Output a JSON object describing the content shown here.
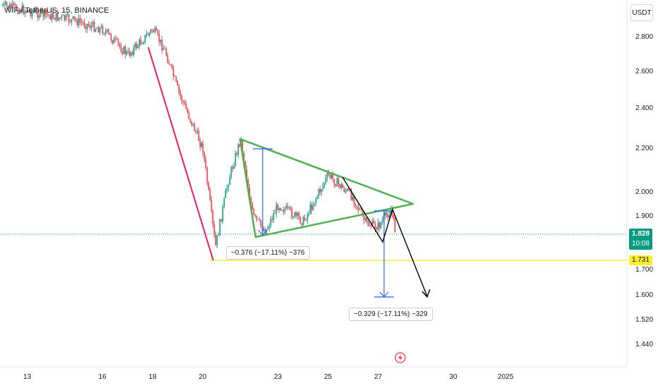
{
  "header": {
    "title": "WIF / TetherUS, 15, BINANCE",
    "currency": "USDT"
  },
  "chart_data": {
    "type": "candlestick",
    "symbol": "WIF / TetherUS",
    "interval": "15",
    "exchange": "BINANCE",
    "y_ticks": [
      "2.800",
      "2.600",
      "2.400",
      "2.200",
      "2.000",
      "1.900",
      "1.700",
      "1.600",
      "1.520",
      "1.440"
    ],
    "y_tick_values": [
      2.8,
      2.6,
      2.4,
      2.2,
      2.0,
      1.9,
      1.7,
      1.6,
      1.52,
      1.44
    ],
    "x_ticks": [
      "13",
      "16",
      "18",
      "20",
      "23",
      "25",
      "27",
      "30",
      "2025"
    ],
    "current_price": "1.828",
    "countdown": "10:08",
    "support_level": "1.731",
    "price_path": [
      {
        "date": "Dec 12",
        "price": 3.0
      },
      {
        "date": "Dec 15",
        "price": 2.9
      },
      {
        "date": "Dec 16",
        "price": 2.85
      },
      {
        "date": "Dec 17",
        "price": 2.7
      },
      {
        "date": "Dec 18",
        "price": 2.85
      },
      {
        "date": "Dec 18.5",
        "price": 2.72
      },
      {
        "date": "Dec 19",
        "price": 2.5
      },
      {
        "date": "Dec 20",
        "price": 2.2
      },
      {
        "date": "Dec 20.5",
        "price": 1.78
      },
      {
        "date": "Dec 21",
        "price": 2.05
      },
      {
        "date": "Dec 21.5",
        "price": 2.25
      },
      {
        "date": "Dec 22",
        "price": 1.9
      },
      {
        "date": "Dec 22.5",
        "price": 1.84
      },
      {
        "date": "Dec 23",
        "price": 1.95
      },
      {
        "date": "Dec 24",
        "price": 1.88
      },
      {
        "date": "Dec 25",
        "price": 2.08
      },
      {
        "date": "Dec 26",
        "price": 1.98
      },
      {
        "date": "Dec 26.5",
        "price": 1.87
      },
      {
        "date": "Dec 27",
        "price": 1.86
      },
      {
        "date": "Dec 27.5",
        "price": 1.93
      },
      {
        "date": "Dec 27.7",
        "price": 1.83
      }
    ],
    "annotations": {
      "measure_left": "−0.376 (−17.11%) −376",
      "measure_right": "−0.329 (−17.11%) −329"
    }
  },
  "colors": {
    "up": "#089981",
    "down": "#f23645",
    "triangle": "#4caf50",
    "measure": "#2962ff",
    "trend_down": "#e91e63",
    "projection": "#000000",
    "support": "#f7ef2f"
  },
  "icons": {
    "alert": "lightning-icon"
  }
}
